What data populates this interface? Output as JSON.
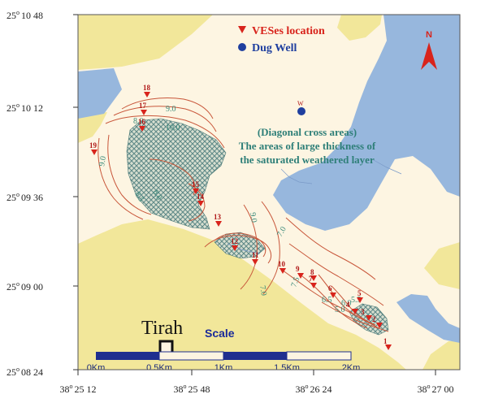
{
  "legend": {
    "ves_label": "VESes location",
    "well_label": "Dug Well"
  },
  "north_arrow": {
    "label": "N"
  },
  "annotation": {
    "line1": "(Diagonal cross areas)",
    "line2": "The areas of large thickness of",
    "line3": "the saturated weathered layer"
  },
  "town": {
    "label": "Tirah"
  },
  "scale": {
    "title": "Scale",
    "ticks": [
      "0Km",
      "0.5Km",
      "1Km",
      "1.5Km",
      "2Km"
    ]
  },
  "lat_ticks": [
    {
      "deg": "25",
      "rest": "10 48"
    },
    {
      "deg": "25",
      "rest": "10 12"
    },
    {
      "deg": "25",
      "rest": "09 36"
    },
    {
      "deg": "25",
      "rest": "09 00"
    },
    {
      "deg": "25",
      "rest": "08 24"
    }
  ],
  "lon_ticks": [
    {
      "deg": "38",
      "rest": "25 12"
    },
    {
      "deg": "38",
      "rest": "25 48"
    },
    {
      "deg": "38",
      "rest": "26 24"
    },
    {
      "deg": "38",
      "rest": "27 00"
    }
  ],
  "well": {
    "label": "W"
  },
  "stations": [
    "1",
    "2",
    "3",
    "4",
    "5",
    "6",
    "7",
    "8",
    "9",
    "10",
    "11",
    "12",
    "13",
    "14",
    "15",
    "16",
    "17",
    "18",
    "19"
  ],
  "contours": [
    "9.0",
    "8.0",
    "10.0",
    "9.0",
    "8.0",
    "8.5",
    "7.0",
    "7.0",
    "9.0",
    "7.5",
    "6.5",
    "5.0",
    "5.5",
    "6.0"
  ],
  "colors": {
    "background": "#fdf5e2",
    "yellow": "#f2e79a",
    "blue": "#97b7dd",
    "hatch": "#6e9a98",
    "contour": "#c8563a",
    "station": "#d8241c",
    "well": "#1f3f9f"
  }
}
